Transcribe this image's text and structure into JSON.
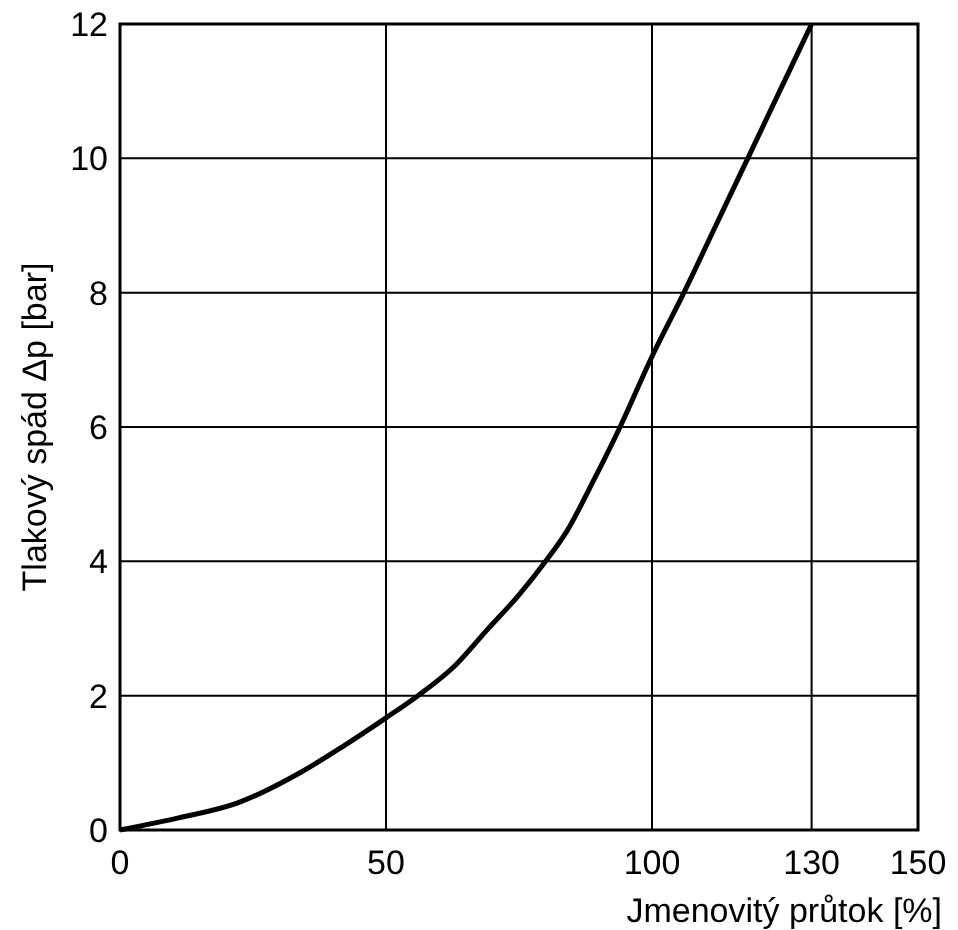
{
  "chart_data": {
    "type": "line",
    "xlabel": "Jmenovitý průtok [%]",
    "ylabel": "Tlakový spád Δp [bar]",
    "x": [
      0,
      11,
      22,
      34,
      42,
      50,
      56,
      63,
      69,
      75,
      80,
      84,
      89,
      94,
      100,
      106,
      112,
      118,
      124,
      130
    ],
    "series": [
      {
        "color": "#000000",
        "values": [
          0,
          0.18,
          0.4,
          0.86,
          1.25,
          1.67,
          2,
          2.45,
          2.98,
          3.5,
          4,
          4.45,
          5.2,
          6,
          7.05,
          8,
          9,
          10,
          11,
          12
        ]
      }
    ],
    "xlim": [
      0,
      150
    ],
    "xticks": [
      0,
      50,
      100,
      130,
      150
    ],
    "ylim": [
      0,
      12
    ],
    "yticks": [
      0,
      2,
      4,
      6,
      8,
      10,
      12
    ],
    "grid": true,
    "marker": "none",
    "line_style": "solid"
  }
}
